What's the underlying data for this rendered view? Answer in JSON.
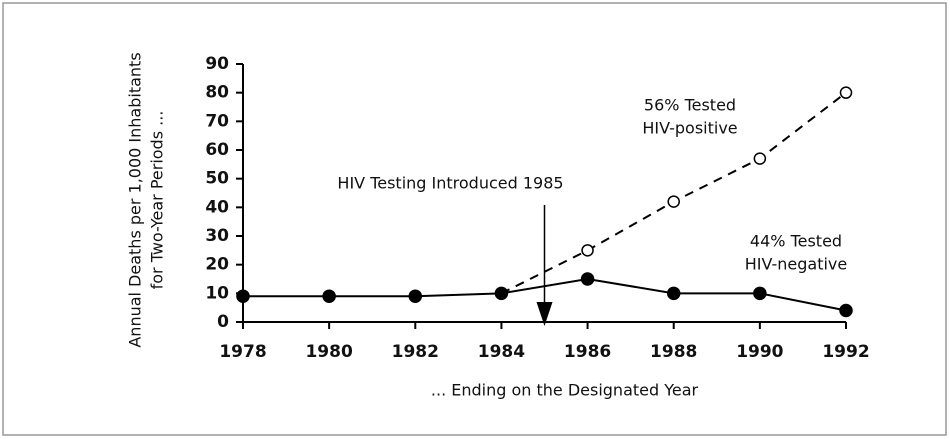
{
  "chart_data": {
    "type": "line",
    "y_label": [
      "Annual Deaths per 1,000 Inhabitants",
      "for Two-Year Periods ..."
    ],
    "x_label": "... Ending on the Designated Year",
    "x": [
      1978,
      1980,
      1982,
      1984,
      1986,
      1988,
      1990,
      1992
    ],
    "series": [
      {
        "label": [
          "44% Tested",
          "HIV-negative"
        ],
        "color": "#000000",
        "dashed": false,
        "marker": "filled",
        "values": [
          9,
          9,
          9,
          10,
          15,
          10,
          10,
          4
        ]
      },
      {
        "label": [
          "56% Tested",
          "HIV-positive"
        ],
        "color": "#000000",
        "dashed": true,
        "marker": "open",
        "values": [
          null,
          null,
          null,
          10,
          25,
          42,
          57,
          80
        ]
      }
    ],
    "annotation": {
      "text": "HIV Testing Introduced 1985",
      "x": 1985
    },
    "xlim": [
      1978,
      1992
    ],
    "ylim": [
      0,
      90
    ],
    "xticks": [
      1978,
      1980,
      1982,
      1984,
      1986,
      1988,
      1990,
      1992
    ],
    "yticks": [
      0,
      10,
      20,
      30,
      40,
      50,
      60,
      70,
      80,
      90
    ]
  }
}
